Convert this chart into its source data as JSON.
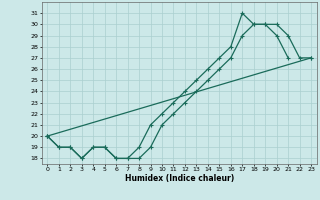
{
  "xlabel": "Humidex (Indice chaleur)",
  "x_values": [
    0,
    1,
    2,
    3,
    4,
    5,
    6,
    7,
    8,
    9,
    10,
    11,
    12,
    13,
    14,
    15,
    16,
    17,
    18,
    19,
    20,
    21,
    22,
    23
  ],
  "series": [
    [
      20,
      19,
      19,
      18,
      19,
      19,
      18,
      18,
      19,
      21,
      22,
      23,
      24,
      25,
      26,
      27,
      28,
      31,
      30,
      30,
      29,
      27,
      null,
      null
    ],
    [
      20,
      19,
      19,
      18,
      19,
      19,
      18,
      18,
      18,
      19,
      21,
      22,
      23,
      24,
      25,
      26,
      27,
      29,
      30,
      30,
      30,
      29,
      27,
      27
    ],
    [
      20,
      null,
      null,
      null,
      null,
      null,
      null,
      null,
      null,
      null,
      null,
      null,
      null,
      null,
      null,
      null,
      null,
      null,
      null,
      null,
      null,
      null,
      null,
      27
    ]
  ],
  "line_color": "#1a6b5a",
  "bg_color": "#cce8e8",
  "grid_color": "#aacfcf",
  "ylim": [
    17.5,
    32
  ],
  "xlim": [
    -0.5,
    23.5
  ],
  "yticks": [
    18,
    19,
    20,
    21,
    22,
    23,
    24,
    25,
    26,
    27,
    28,
    29,
    30,
    31
  ],
  "xticks": [
    0,
    1,
    2,
    3,
    4,
    5,
    6,
    7,
    8,
    9,
    10,
    11,
    12,
    13,
    14,
    15,
    16,
    17,
    18,
    19,
    20,
    21,
    22,
    23
  ],
  "marker": "+",
  "markersize": 3,
  "linewidth": 0.9
}
